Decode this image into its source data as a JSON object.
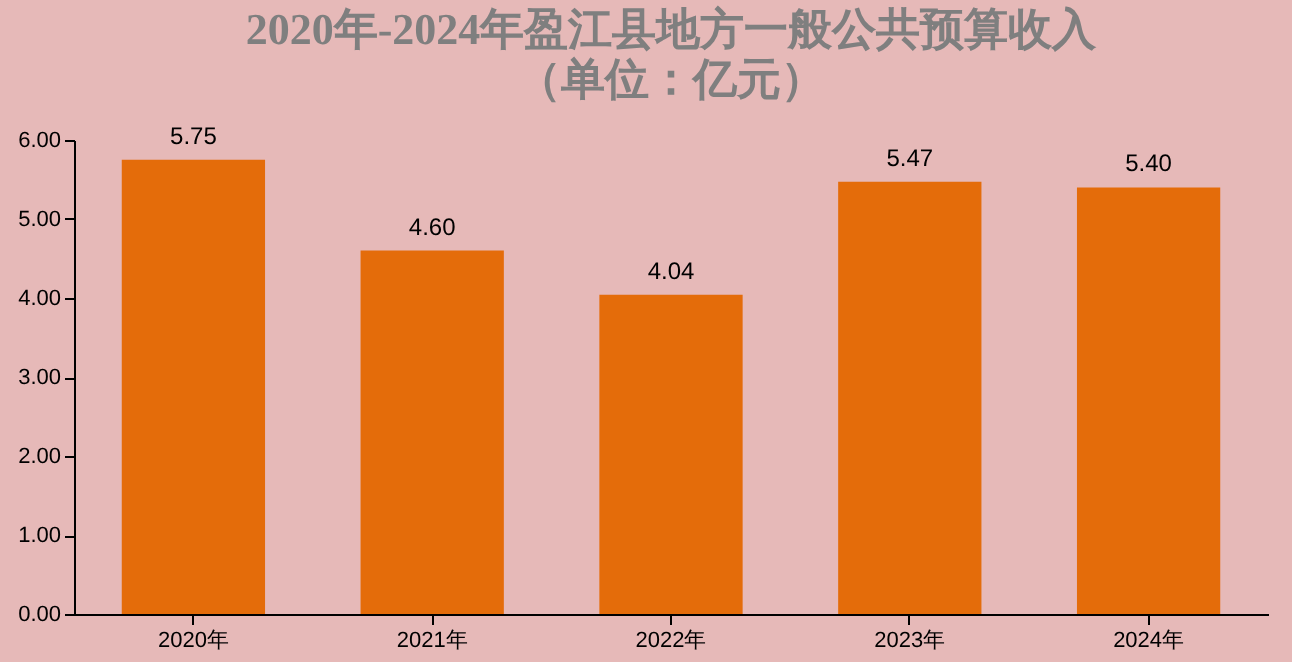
{
  "chart_data": {
    "type": "bar",
    "title": "2020年-2024年盈江县地方一般公共预算收入",
    "subtitle": "（单位：亿元）",
    "categories": [
      "2020年",
      "2021年",
      "2022年",
      "2023年",
      "2024年"
    ],
    "values": [
      5.75,
      4.6,
      4.04,
      5.47,
      5.4
    ],
    "color": "#e46c0a",
    "value_labels": [
      "5.75",
      "4.60",
      "4.04",
      "5.47",
      "5.40"
    ],
    "ylim": [
      0,
      6
    ],
    "yticks": [
      {
        "value": 0,
        "label": "0.00"
      },
      {
        "value": 1,
        "label": "1.00"
      },
      {
        "value": 2,
        "label": "2.00"
      },
      {
        "value": 3,
        "label": "3.00"
      },
      {
        "value": 4,
        "label": "4.00"
      },
      {
        "value": 5,
        "label": "5.00"
      },
      {
        "value": 6,
        "label": "6.00"
      }
    ],
    "grid": false
  }
}
